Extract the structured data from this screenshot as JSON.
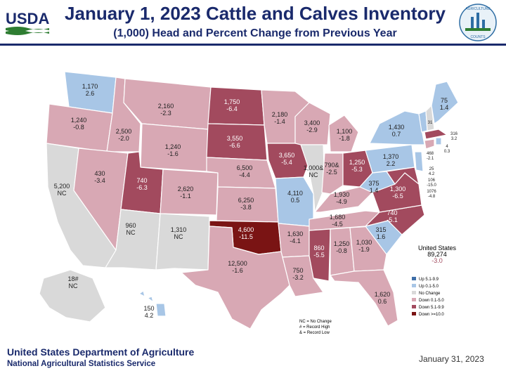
{
  "header": {
    "agency_logo_text": "USDA",
    "title": "January 1, 2023 Cattle and Calves Inventory",
    "subtitle": "(1,000) Head and Percent Change from Previous Year",
    "seal_text_top": "AGRICULTURE",
    "seal_text_bottom": "COUNTS"
  },
  "colors": {
    "up_5_1_9_9": "#3f6fa8",
    "up_0_1_5_0": "#a8c6e6",
    "no_change": "#d9d9d9",
    "down_0_1_5_0": "#d8a8b4",
    "down_5_1_9_9": "#a24a5e",
    "down_10_plus": "#7a1414",
    "title_blue": "#1a2a6c"
  },
  "states": {
    "WA": {
      "value": "1,170",
      "change": "2.6"
    },
    "OR": {
      "value": "1,240",
      "change": "-0.8"
    },
    "CA": {
      "value": "5,200",
      "change": "NC"
    },
    "ID": {
      "value": "2,500",
      "change": "-2.0"
    },
    "NV": {
      "value": "430",
      "change": "-3.4"
    },
    "MT": {
      "value": "2,160",
      "change": "-2.3"
    },
    "WY": {
      "value": "1,240",
      "change": "-1.6"
    },
    "UT": {
      "value": "740",
      "change": "-6.3"
    },
    "AZ": {
      "value": "960",
      "change": "NC"
    },
    "CO": {
      "value": "2,620",
      "change": "-1.1"
    },
    "NM": {
      "value": "1,310",
      "change": "NC"
    },
    "ND": {
      "value": "1,750",
      "change": "-6.4"
    },
    "SD": {
      "value": "3,550",
      "change": "-6.6"
    },
    "NE": {
      "value": "6,500",
      "change": "-4.4"
    },
    "KS": {
      "value": "6,250",
      "change": "-3.8"
    },
    "OK": {
      "value": "4,600",
      "change": "-11.5"
    },
    "TX": {
      "value": "12,500",
      "change": "-1.6"
    },
    "MN": {
      "value": "2,180",
      "change": "-1.4"
    },
    "IA": {
      "value": "3,650",
      "change": "-5.4"
    },
    "MO": {
      "value": "4,110",
      "change": "0.5"
    },
    "AR": {
      "value": "1,630",
      "change": "-4.1"
    },
    "LA": {
      "value": "750",
      "change": "-3.2"
    },
    "WI": {
      "value": "3,400",
      "change": "-2.9"
    },
    "IL": {
      "value": "1,000&",
      "change": "NC"
    },
    "MI": {
      "value": "1,100",
      "change": "-1.8"
    },
    "IN": {
      "value": "790&",
      "change": "-2.5"
    },
    "OH": {
      "value": "1,250",
      "change": "-5.3"
    },
    "KY": {
      "value": "1,930",
      "change": "-4.9"
    },
    "TN": {
      "value": "1,680",
      "change": "-4.5"
    },
    "MS": {
      "value": "860",
      "change": "-5.5"
    },
    "AL": {
      "value": "1,250",
      "change": "-0.8"
    },
    "GA": {
      "value": "1,030",
      "change": "-1.9"
    },
    "FL": {
      "value": "1,620",
      "change": "0.6"
    },
    "SC": {
      "value": "315",
      "change": "1.6"
    },
    "NC": {
      "value": "740",
      "change": "-5.1"
    },
    "VA": {
      "value": "1,300",
      "change": "-6.5"
    },
    "WV": {
      "value": "375",
      "change": "1.4"
    },
    "PA": {
      "value": "1,370",
      "change": "2.2"
    },
    "NY": {
      "value": "1,430",
      "change": "0.7"
    },
    "ME": {
      "value": "75",
      "change": "1.4"
    },
    "VT": {
      "value": "",
      "change": ""
    },
    "NH": {
      "value": "31",
      "change": ""
    },
    "MA": {
      "value": "",
      "change": ""
    },
    "CT": {
      "value": "468",
      "change": "-2.1"
    },
    "RI": {
      "value": "4",
      "change": "0.3"
    },
    "NJ": {
      "value": "25",
      "change": "4.2"
    },
    "DE": {
      "value": "106",
      "change": "-15.0"
    },
    "MD": {
      "value": "1076",
      "change": "-4.8"
    },
    "NE_small": {
      "value": "316",
      "change": "3.2"
    },
    "AK": {
      "value": "18#",
      "change": "NC"
    },
    "HI": {
      "value": "150",
      "change": "4.2"
    }
  },
  "us_total": {
    "label": "United States",
    "value": "89,274",
    "change": "-3.0"
  },
  "legend": {
    "items": [
      "Up 5.1-9.9",
      "Up 0.1-5.0",
      "No Change",
      "Down 0.1-5.0",
      "Down 5.1-9.9",
      "Down >=10.0"
    ],
    "notes": [
      "NC = No Change",
      "# = Record High",
      "& = Record Low"
    ]
  },
  "footer": {
    "org": "United States Department of Agriculture",
    "service": "National Agricultural Statistics Service",
    "date": "January 31, 2023"
  }
}
